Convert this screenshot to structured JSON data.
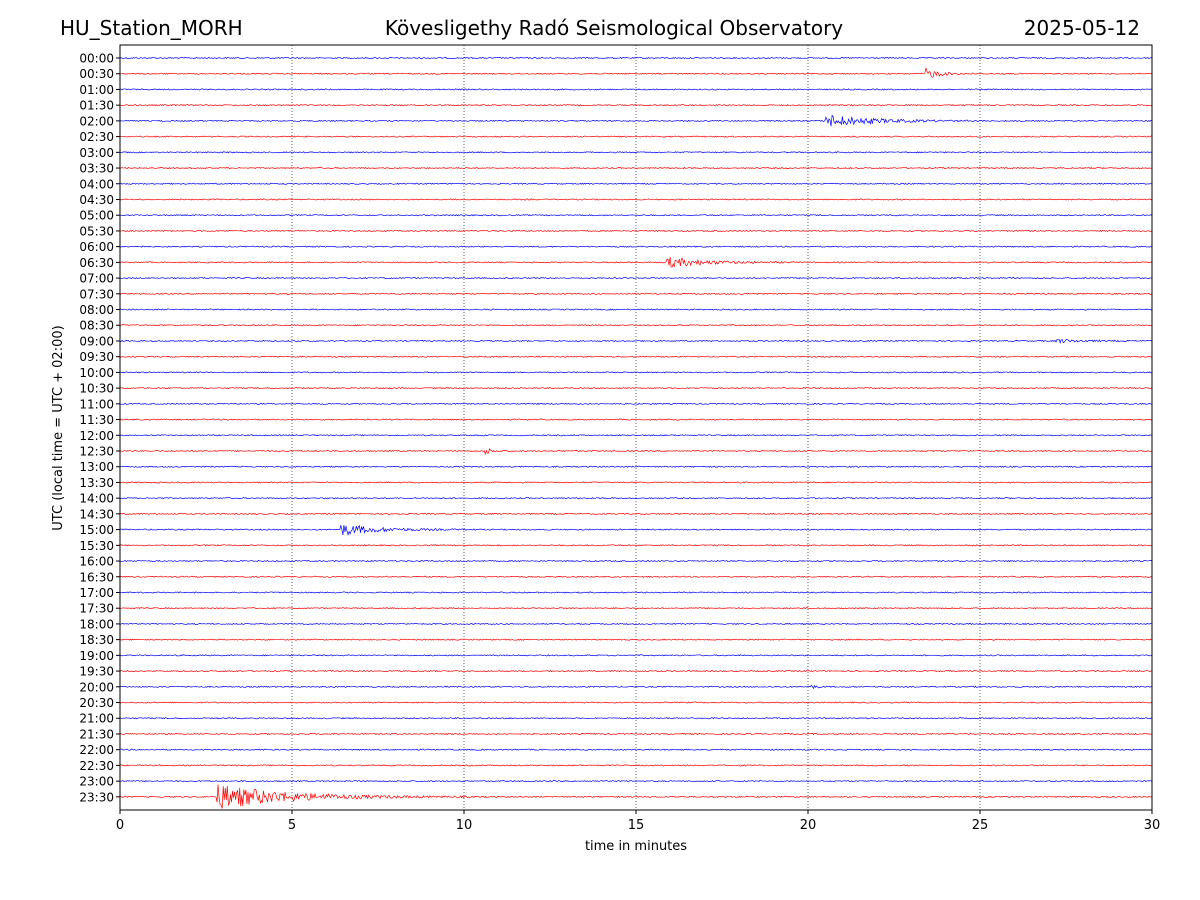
{
  "header": {
    "station": "HU_Station_MORH",
    "title": "Kövesligethy Radó Seismological Observatory",
    "date": "2025-05-12"
  },
  "chart_data": {
    "type": "line",
    "xlabel": "time in minutes",
    "ylabel": "UTC (local time = UTC + 02:00)",
    "xlim": [
      0,
      30
    ],
    "xticks": [
      0,
      5,
      10,
      15,
      20,
      25,
      30
    ],
    "grid": "vertical dotted",
    "colors": {
      "even_rows": "#0000ff",
      "odd_rows": "#ff0000",
      "grid": "#000000"
    },
    "rows": [
      "00:00",
      "00:30",
      "01:00",
      "01:30",
      "02:00",
      "02:30",
      "03:00",
      "03:30",
      "04:00",
      "04:30",
      "05:00",
      "05:30",
      "06:00",
      "06:30",
      "07:00",
      "07:30",
      "08:00",
      "08:30",
      "09:00",
      "09:30",
      "10:00",
      "10:30",
      "11:00",
      "11:30",
      "12:00",
      "12:30",
      "13:00",
      "13:30",
      "14:00",
      "14:30",
      "15:00",
      "15:30",
      "16:00",
      "16:30",
      "17:00",
      "17:30",
      "18:00",
      "18:30",
      "19:00",
      "19:30",
      "20:00",
      "20:30",
      "21:00",
      "21:30",
      "22:00",
      "22:30",
      "23:00",
      "23:30"
    ],
    "events": [
      {
        "row": "00:30",
        "start_min": 23.4,
        "duration_min": 1.5,
        "amplitude": 0.5
      },
      {
        "row": "02:00",
        "start_min": 20.5,
        "duration_min": 5.0,
        "amplitude": 0.55
      },
      {
        "row": "06:30",
        "start_min": 15.9,
        "duration_min": 4.0,
        "amplitude": 0.45
      },
      {
        "row": "09:00",
        "start_min": 27.2,
        "duration_min": 2.8,
        "amplitude": 0.15
      },
      {
        "row": "12:30",
        "start_min": 10.6,
        "duration_min": 0.8,
        "amplitude": 0.35
      },
      {
        "row": "15:00",
        "start_min": 6.4,
        "duration_min": 4.0,
        "amplitude": 0.5
      },
      {
        "row": "20:00",
        "start_min": 20.1,
        "duration_min": 0.7,
        "amplitude": 0.15
      },
      {
        "row": "23:30",
        "start_min": 2.8,
        "duration_min": 7.5,
        "amplitude": 1.1
      }
    ]
  }
}
